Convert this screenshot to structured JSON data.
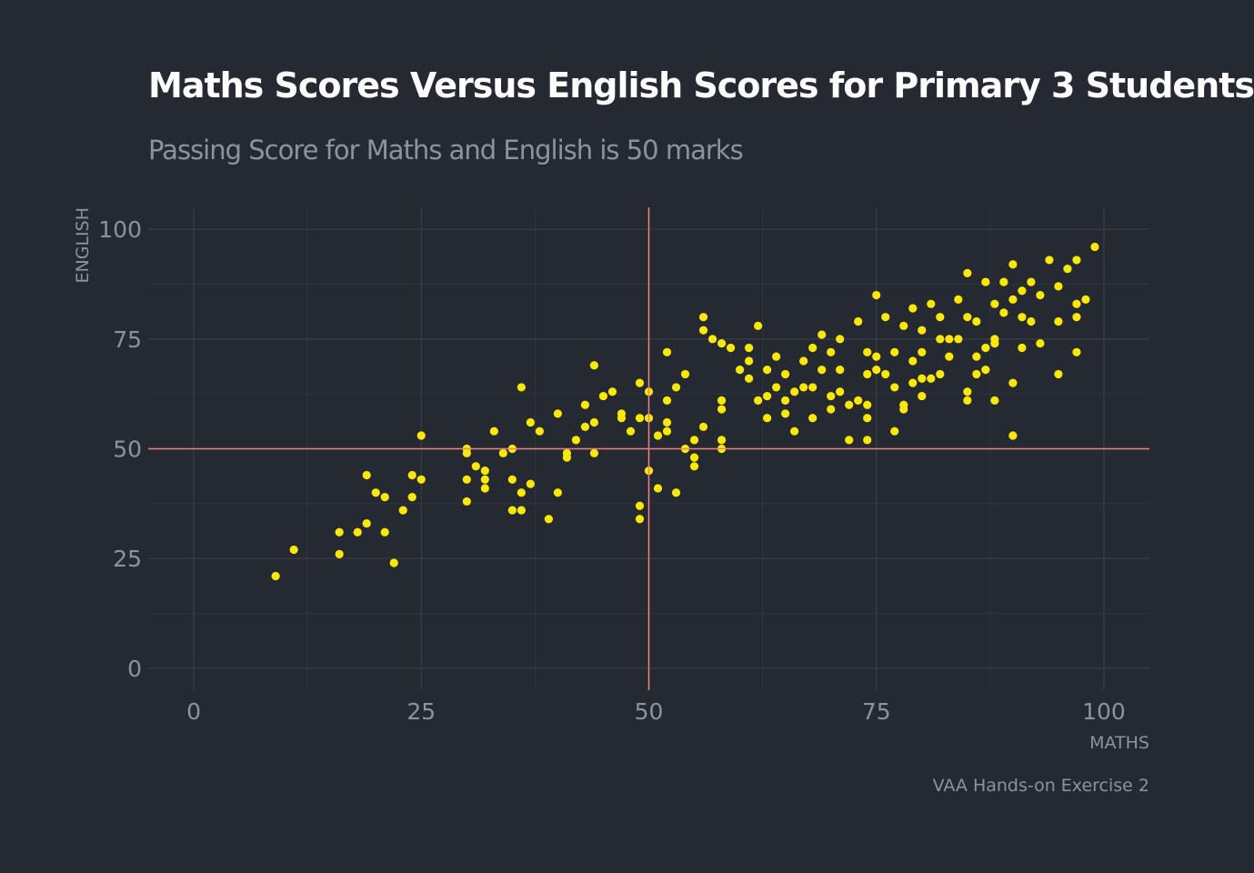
{
  "chart_data": {
    "type": "scatter",
    "title": "Maths Scores Versus English Scores for Primary 3 Students",
    "subtitle": "Passing Score for Maths and English is 50 marks",
    "caption": "VAA Hands-on Exercise 2",
    "xlabel": "MATHS",
    "ylabel": "ENGLISH",
    "xlim": [
      -5,
      105
    ],
    "ylim": [
      -5,
      105
    ],
    "x_ticks": [
      0,
      25,
      50,
      75,
      100
    ],
    "y_ticks": [
      0,
      25,
      50,
      75,
      100
    ],
    "grid": true,
    "reference_lines": {
      "x": 50,
      "y": 50,
      "color": "#F08080"
    },
    "point_color": "#FFE800",
    "background": "#252A32",
    "grid_color": "#3C414A",
    "x": [
      9,
      11,
      16,
      16,
      18,
      19,
      19,
      20,
      21,
      21,
      22,
      23,
      24,
      24,
      25,
      25,
      30,
      30,
      30,
      30,
      31,
      32,
      32,
      32,
      33,
      34,
      35,
      35,
      35,
      36,
      36,
      36,
      37,
      37,
      38,
      39,
      40,
      40,
      41,
      41,
      42,
      43,
      43,
      44,
      44,
      44,
      45,
      46,
      47,
      47,
      48,
      49,
      49,
      49,
      49,
      50,
      50,
      50,
      51,
      51,
      52,
      52,
      52,
      52,
      53,
      53,
      54,
      54,
      55,
      55,
      55,
      56,
      56,
      56,
      57,
      58,
      58,
      58,
      58,
      58,
      59,
      60,
      61,
      61,
      61,
      62,
      62,
      63,
      63,
      63,
      64,
      64,
      65,
      65,
      65,
      66,
      66,
      67,
      67,
      68,
      68,
      68,
      69,
      69,
      70,
      70,
      70,
      71,
      71,
      71,
      72,
      72,
      73,
      73,
      74,
      74,
      74,
      74,
      74,
      75,
      75,
      75,
      76,
      76,
      77,
      77,
      77,
      78,
      78,
      78,
      79,
      79,
      79,
      80,
      80,
      80,
      80,
      81,
      81,
      82,
      82,
      82,
      83,
      83,
      84,
      84,
      85,
      85,
      85,
      85,
      86,
      86,
      86,
      87,
      87,
      87,
      88,
      88,
      88,
      88,
      89,
      89,
      90,
      90,
      90,
      90,
      91,
      91,
      91,
      92,
      92,
      93,
      93,
      94,
      95,
      95,
      95,
      96,
      97,
      97,
      97,
      97,
      98,
      99
    ],
    "y": [
      21,
      27,
      26,
      31,
      31,
      33,
      44,
      40,
      31,
      39,
      24,
      36,
      39,
      44,
      43,
      53,
      38,
      43,
      49,
      50,
      46,
      41,
      43,
      45,
      54,
      49,
      36,
      43,
      50,
      36,
      40,
      64,
      42,
      56,
      54,
      34,
      40,
      58,
      48,
      49,
      52,
      55,
      60,
      49,
      56,
      69,
      62,
      63,
      57,
      58,
      54,
      34,
      37,
      57,
      65,
      45,
      57,
      63,
      41,
      53,
      54,
      56,
      61,
      72,
      40,
      64,
      50,
      67,
      46,
      48,
      52,
      77,
      55,
      80,
      75,
      50,
      52,
      59,
      61,
      74,
      73,
      68,
      66,
      70,
      73,
      78,
      61,
      62,
      68,
      57,
      64,
      71,
      61,
      58,
      67,
      63,
      54,
      70,
      64,
      64,
      73,
      57,
      76,
      68,
      62,
      59,
      72,
      63,
      75,
      68,
      52,
      60,
      61,
      79,
      72,
      67,
      52,
      57,
      60,
      85,
      68,
      71,
      80,
      67,
      64,
      54,
      72,
      78,
      60,
      59,
      82,
      65,
      70,
      77,
      62,
      66,
      72,
      83,
      66,
      80,
      67,
      75,
      75,
      71,
      75,
      84,
      63,
      61,
      80,
      90,
      67,
      71,
      79,
      88,
      68,
      73,
      61,
      83,
      75,
      74,
      81,
      88,
      53,
      65,
      84,
      92,
      73,
      80,
      86,
      88,
      79,
      74,
      85,
      93,
      87,
      67,
      79,
      91,
      72,
      80,
      83,
      93,
      84,
      96
    ]
  }
}
